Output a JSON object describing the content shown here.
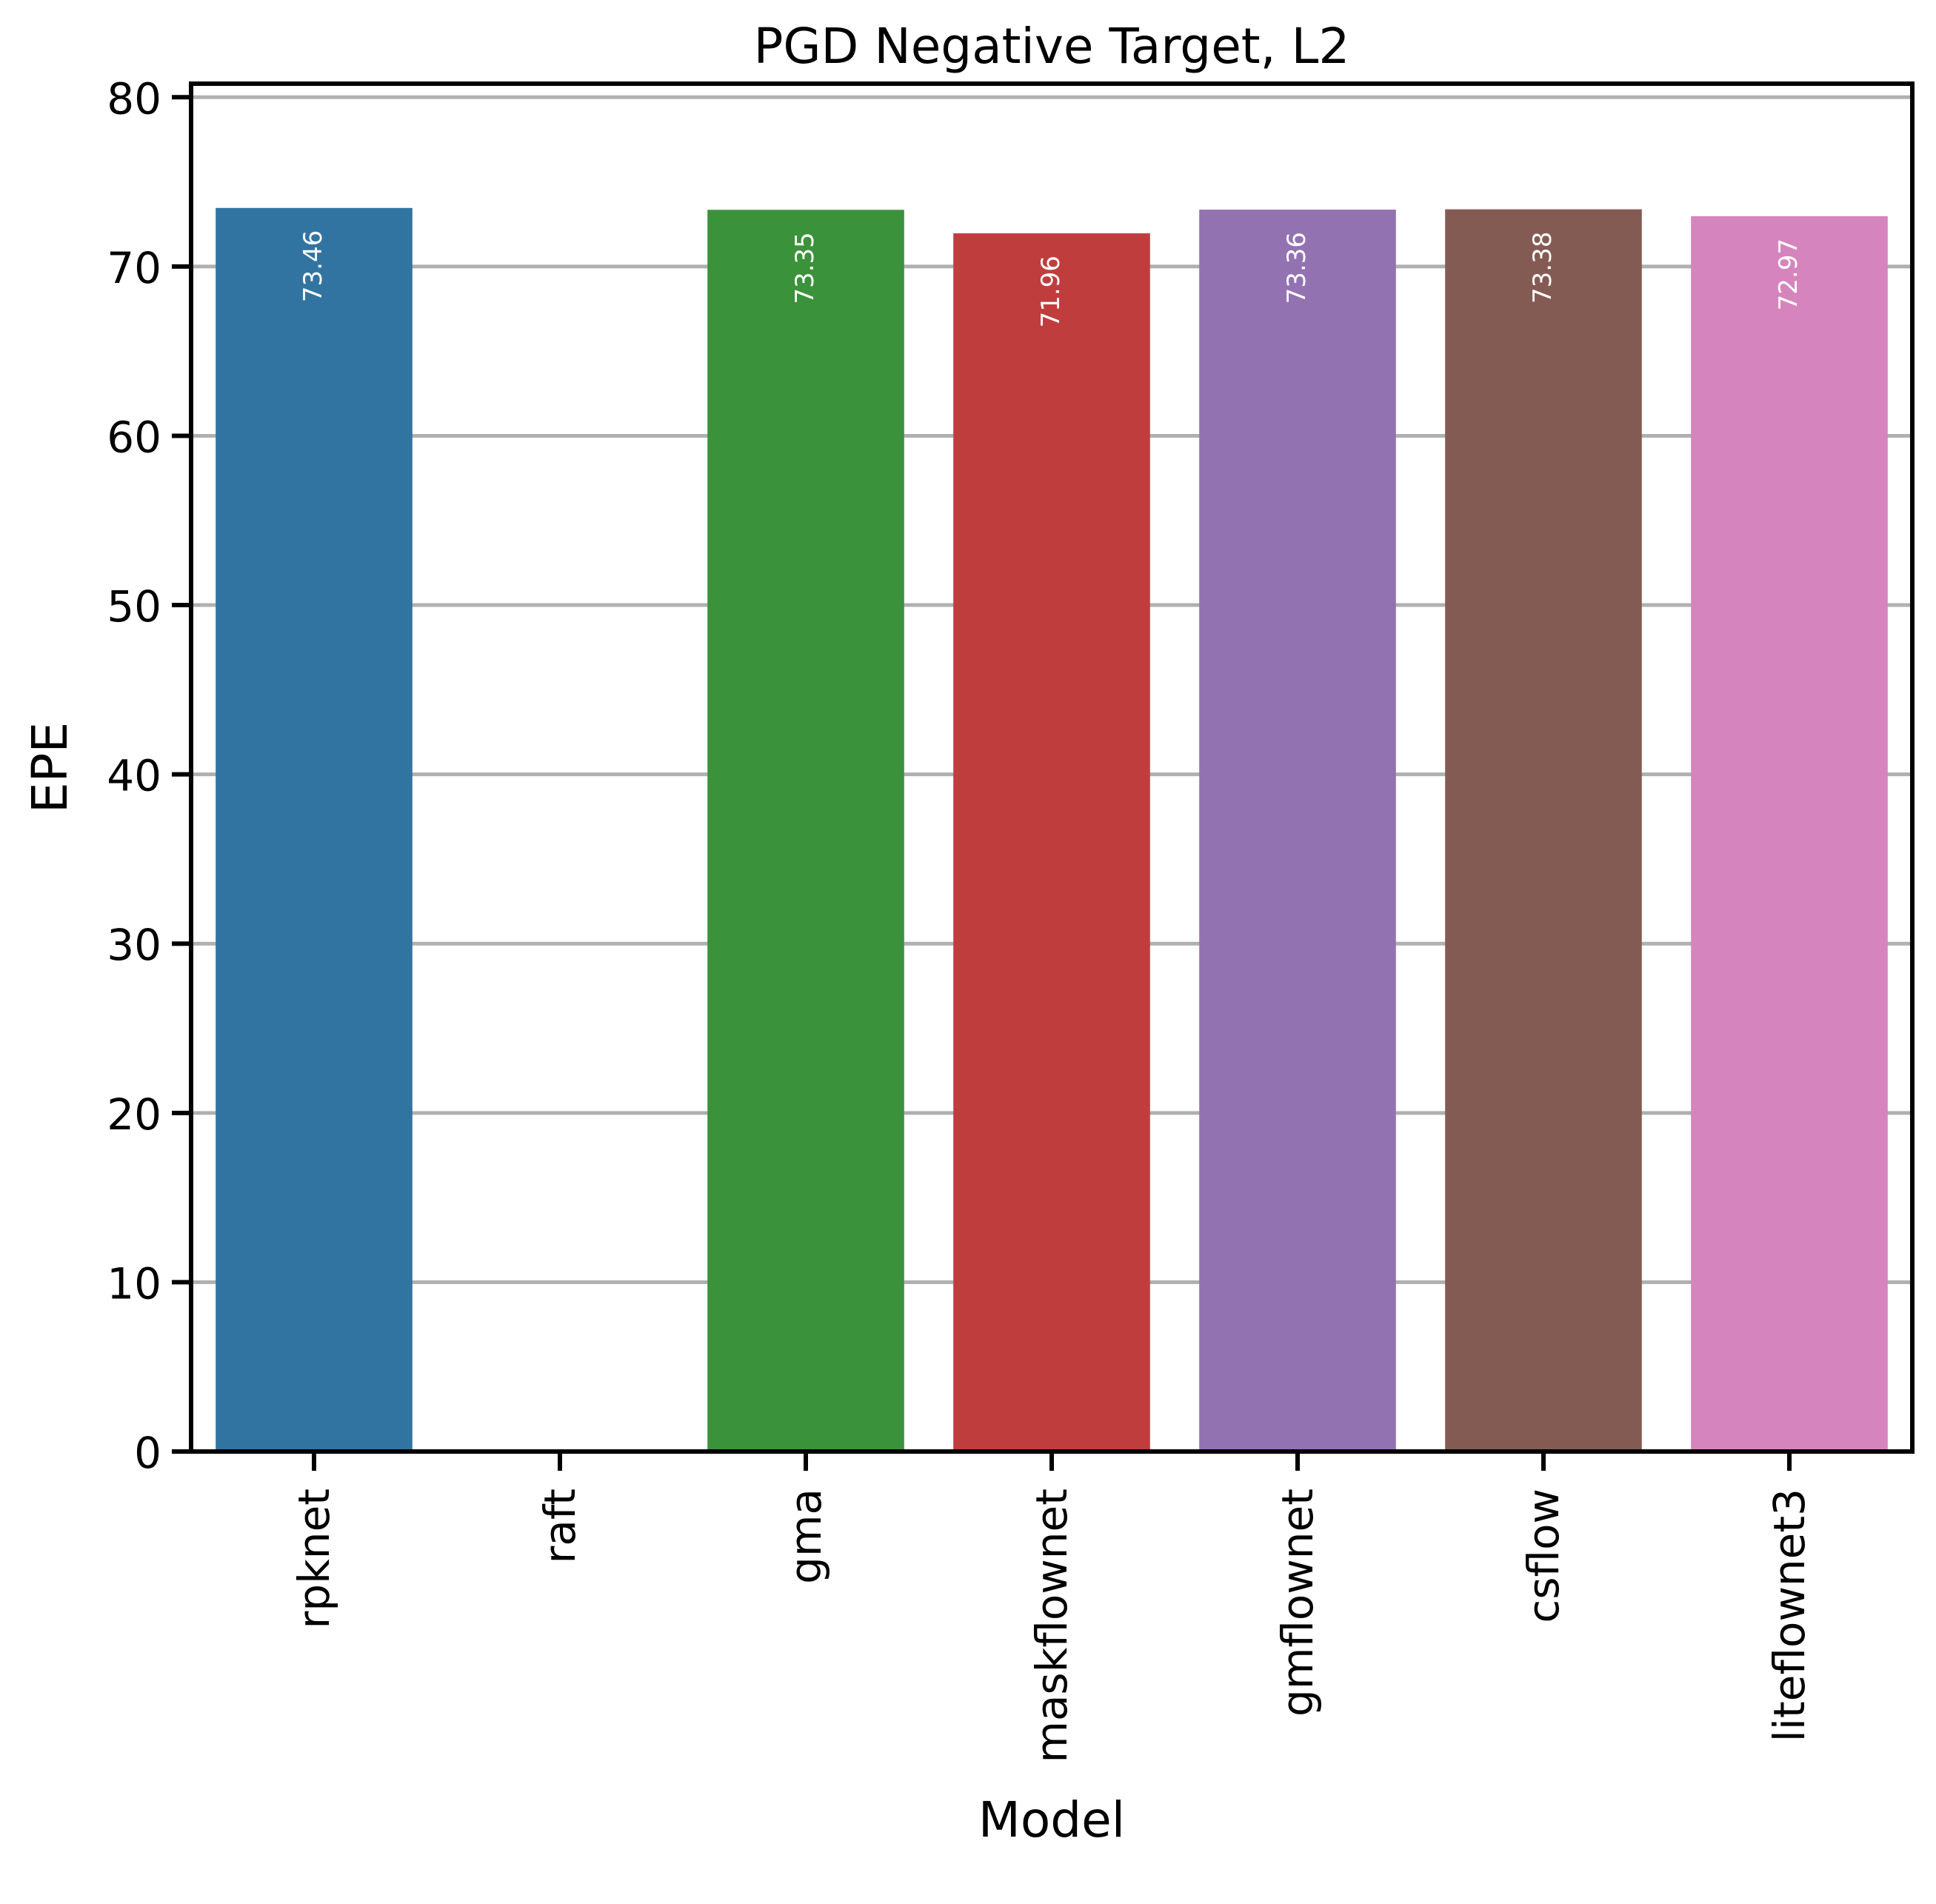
{
  "chart_data": {
    "type": "bar",
    "title": "PGD Negative Target, L2",
    "xlabel": "Model",
    "ylabel": "EPE",
    "ylim": [
      0,
      80.8
    ],
    "yticks": [
      0,
      10,
      20,
      30,
      40,
      50,
      60,
      70,
      80
    ],
    "grid": "horizontal",
    "categories": [
      "rpknet",
      "raft",
      "gma",
      "maskflownet",
      "gmflownet",
      "csflow",
      "liteflownet3"
    ],
    "values": [
      73.46,
      null,
      73.35,
      71.96,
      73.36,
      73.38,
      72.97
    ],
    "data_labels": [
      "73.46",
      "",
      "73.35",
      "71.96",
      "73.36",
      "73.38",
      "72.97"
    ],
    "colors": [
      "#3274a1",
      "#e1812c",
      "#3a923a",
      "#c03d3e",
      "#9372b2",
      "#845b53",
      "#d684bd"
    ],
    "label_color": "#ffffff",
    "grid_color": "#b0b0b0",
    "axis_color": "#000000"
  }
}
